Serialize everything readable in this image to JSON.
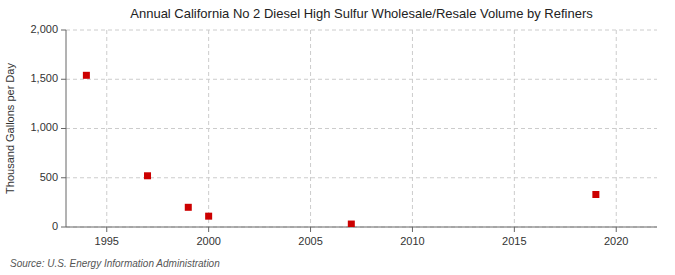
{
  "chart_data": {
    "type": "scatter",
    "title": "Annual California No 2 Diesel High Sulfur Wholesale/Resale Volume by Refiners",
    "ylabel": "Thousand Gallons per Day",
    "source": "Source: U.S. Energy Information Administration",
    "x": [
      1994,
      1997,
      1999,
      2000,
      2007,
      2019
    ],
    "values": [
      1540,
      520,
      200,
      110,
      30,
      330
    ],
    "color": "#cc0000",
    "marker": "square",
    "xlim": [
      1993,
      2022
    ],
    "ylim": [
      0,
      2000
    ],
    "xticks": [
      1995,
      2000,
      2005,
      2010,
      2015,
      2020
    ],
    "yticks": [
      0,
      500,
      {
        "value": 1000,
        "label": "1,000"
      },
      {
        "value": 1500,
        "label": "1,500"
      },
      {
        "value": 2000,
        "label": "2,000"
      }
    ],
    "grid": true
  }
}
